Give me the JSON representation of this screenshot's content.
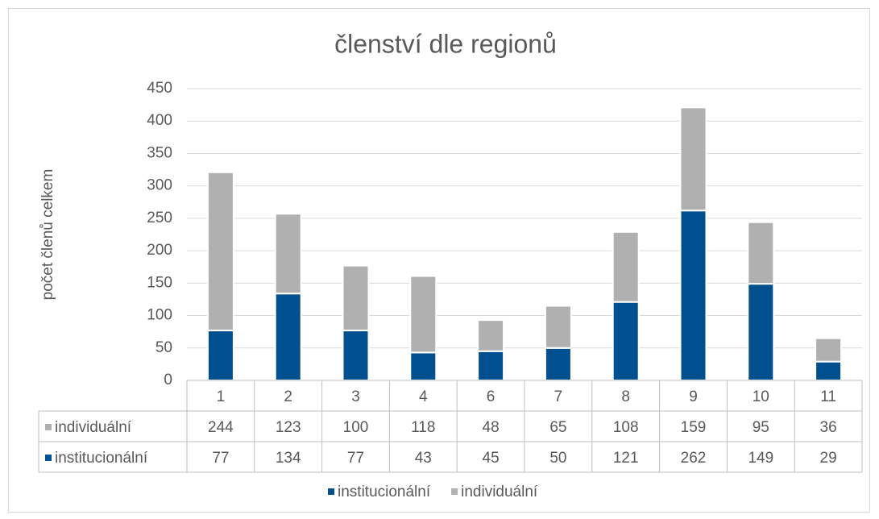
{
  "chart_data": {
    "type": "stacked_bar",
    "title": "členství dle regionů",
    "y_label": "počet členů celkem",
    "categories": [
      "1",
      "2",
      "3",
      "4",
      "6",
      "7",
      "8",
      "9",
      "10",
      "11"
    ],
    "series": [
      {
        "name": "institucionální",
        "color": "#00508f",
        "values": [
          77,
          134,
          77,
          43,
          45,
          50,
          121,
          262,
          149,
          29
        ]
      },
      {
        "name": "individuální",
        "color": "#b0b0b0",
        "values": [
          244,
          123,
          100,
          118,
          48,
          65,
          108,
          159,
          95,
          36
        ]
      }
    ],
    "ylim": [
      0,
      450
    ],
    "yticks": [
      0,
      50,
      100,
      150,
      200,
      250,
      300,
      350,
      400,
      450
    ],
    "grid": true
  }
}
